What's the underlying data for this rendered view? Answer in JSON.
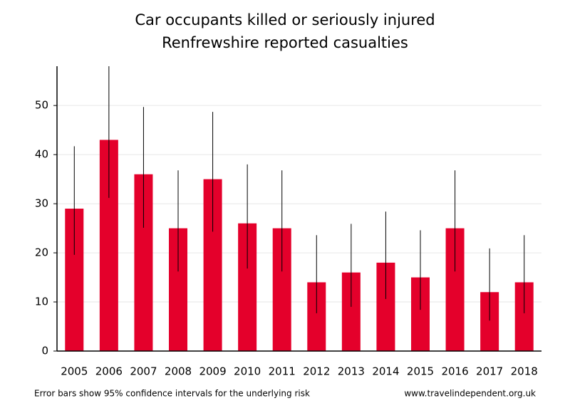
{
  "chart_data": {
    "type": "bar",
    "title": "Car occupants killed or seriously injured",
    "subtitle": "Renfrewshire reported casualties",
    "categories": [
      "2005",
      "2006",
      "2007",
      "2008",
      "2009",
      "2010",
      "2011",
      "2012",
      "2013",
      "2014",
      "2015",
      "2016",
      "2017",
      "2018"
    ],
    "values": [
      29,
      43,
      36,
      25,
      35,
      26,
      25,
      14,
      16,
      18,
      15,
      25,
      12,
      14
    ],
    "ci_lower": [
      19.6,
      31.2,
      25.1,
      16.2,
      24.3,
      16.8,
      16.2,
      7.7,
      9.0,
      10.6,
      8.4,
      16.2,
      6.2,
      7.7
    ],
    "ci_upper": [
      41.7,
      58,
      49.7,
      36.8,
      48.7,
      38.0,
      36.8,
      23.6,
      25.9,
      28.4,
      24.6,
      36.8,
      20.9,
      23.6
    ],
    "color": "#e4002b",
    "ylim": [
      0,
      58
    ],
    "yticks": [
      0,
      10,
      20,
      30,
      40,
      50
    ],
    "grid": true,
    "note": "Error bars show 95% confidence intervals for the underlying risk",
    "source": "www.travelindependent.org.uk"
  }
}
